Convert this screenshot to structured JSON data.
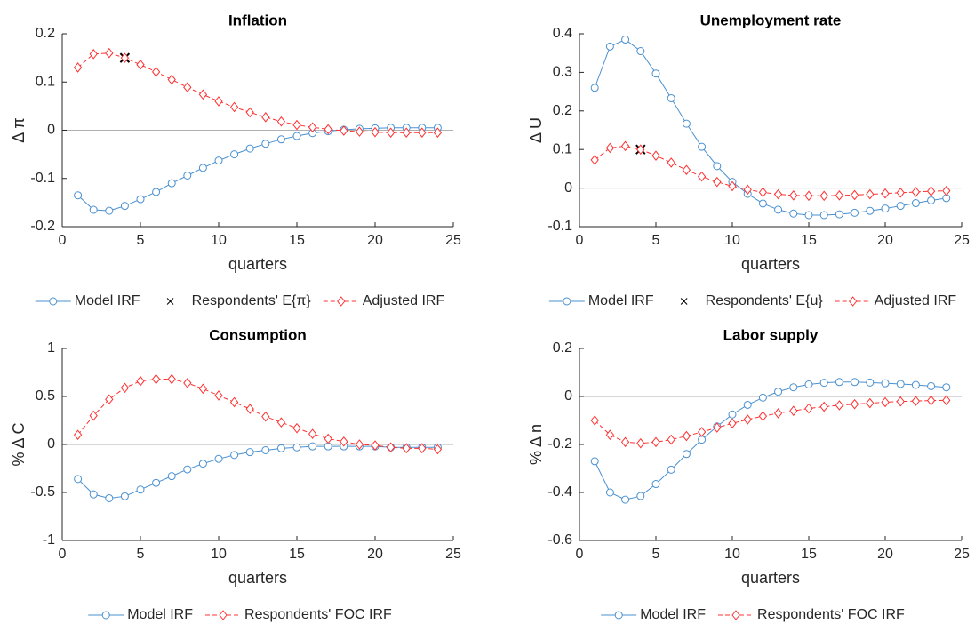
{
  "chart_data": [
    {
      "type": "line",
      "title": "Inflation",
      "xlabel": "quarters",
      "ylabel": "Δ π",
      "x": [
        1,
        2,
        3,
        4,
        5,
        6,
        7,
        8,
        9,
        10,
        11,
        12,
        13,
        14,
        15,
        16,
        17,
        18,
        19,
        20,
        21,
        22,
        23,
        24
      ],
      "xlim": [
        0,
        25
      ],
      "xticks": [
        0,
        5,
        10,
        15,
        20,
        25
      ],
      "ylim": [
        -0.2,
        0.2
      ],
      "yticks": [
        -0.2,
        -0.1,
        0,
        0.1,
        0.2
      ],
      "series": [
        {
          "name": "Model IRF",
          "color": "#4a90d0",
          "marker": "circle",
          "linestyle": "solid",
          "values": [
            -0.135,
            -0.165,
            -0.167,
            -0.157,
            -0.143,
            -0.128,
            -0.11,
            -0.094,
            -0.078,
            -0.063,
            -0.05,
            -0.038,
            -0.028,
            -0.019,
            -0.012,
            -0.006,
            -0.002,
            0.001,
            0.003,
            0.004,
            0.005,
            0.005,
            0.005,
            0.005
          ]
        },
        {
          "name": "Respondents' E{π}",
          "color": "#000000",
          "marker": "cross",
          "linestyle": "none",
          "x": [
            4
          ],
          "values": [
            0.15
          ]
        },
        {
          "name": "Adjusted IRF",
          "color": "#ff3030",
          "marker": "diamond",
          "linestyle": "dashed",
          "values": [
            0.13,
            0.158,
            0.16,
            0.15,
            0.136,
            0.121,
            0.105,
            0.089,
            0.074,
            0.06,
            0.048,
            0.037,
            0.027,
            0.018,
            0.011,
            0.006,
            0.002,
            -0.001,
            -0.003,
            -0.004,
            -0.005,
            -0.005,
            -0.005,
            -0.005
          ]
        }
      ]
    },
    {
      "type": "line",
      "title": "Unemployment rate",
      "xlabel": "quarters",
      "ylabel": "Δ U",
      "x": [
        1,
        2,
        3,
        4,
        5,
        6,
        7,
        8,
        9,
        10,
        11,
        12,
        13,
        14,
        15,
        16,
        17,
        18,
        19,
        20,
        21,
        22,
        23,
        24
      ],
      "xlim": [
        0,
        25
      ],
      "xticks": [
        0,
        5,
        10,
        15,
        20,
        25
      ],
      "ylim": [
        -0.1,
        0.4
      ],
      "yticks": [
        -0.1,
        0,
        0.1,
        0.2,
        0.3,
        0.4
      ],
      "series": [
        {
          "name": "Model IRF",
          "color": "#4a90d0",
          "marker": "circle",
          "linestyle": "solid",
          "values": [
            0.26,
            0.367,
            0.385,
            0.355,
            0.297,
            0.233,
            0.167,
            0.107,
            0.057,
            0.016,
            -0.015,
            -0.04,
            -0.056,
            -0.066,
            -0.07,
            -0.07,
            -0.068,
            -0.064,
            -0.059,
            -0.053,
            -0.046,
            -0.039,
            -0.032,
            -0.026
          ]
        },
        {
          "name": "Respondents' E{u}",
          "color": "#000000",
          "marker": "cross",
          "linestyle": "none",
          "x": [
            4
          ],
          "values": [
            0.1
          ]
        },
        {
          "name": "Adjusted IRF",
          "color": "#ff3030",
          "marker": "diamond",
          "linestyle": "dashed",
          "values": [
            0.073,
            0.104,
            0.109,
            0.1,
            0.084,
            0.066,
            0.047,
            0.03,
            0.016,
            0.005,
            -0.004,
            -0.011,
            -0.016,
            -0.019,
            -0.02,
            -0.02,
            -0.019,
            -0.018,
            -0.016,
            -0.014,
            -0.012,
            -0.01,
            -0.008,
            -0.007
          ]
        }
      ]
    },
    {
      "type": "line",
      "title": "Consumption",
      "xlabel": "quarters",
      "ylabel": "% Δ C",
      "x": [
        1,
        2,
        3,
        4,
        5,
        6,
        7,
        8,
        9,
        10,
        11,
        12,
        13,
        14,
        15,
        16,
        17,
        18,
        19,
        20,
        21,
        22,
        23,
        24
      ],
      "xlim": [
        0,
        25
      ],
      "xticks": [
        0,
        5,
        10,
        15,
        20,
        25
      ],
      "ylim": [
        -1,
        1
      ],
      "yticks": [
        -1,
        -0.5,
        0,
        0.5,
        1
      ],
      "series": [
        {
          "name": "Model IRF",
          "color": "#4a90d0",
          "marker": "circle",
          "linestyle": "solid",
          "values": [
            -0.36,
            -0.52,
            -0.56,
            -0.54,
            -0.47,
            -0.4,
            -0.33,
            -0.26,
            -0.2,
            -0.15,
            -0.11,
            -0.08,
            -0.06,
            -0.04,
            -0.03,
            -0.02,
            -0.02,
            -0.02,
            -0.02,
            -0.02,
            -0.03,
            -0.03,
            -0.03,
            -0.03
          ]
        },
        {
          "name": "Respondents' FOC IRF",
          "color": "#ff3030",
          "marker": "diamond",
          "linestyle": "dashed",
          "values": [
            0.1,
            0.3,
            0.47,
            0.59,
            0.66,
            0.68,
            0.68,
            0.64,
            0.58,
            0.51,
            0.44,
            0.37,
            0.29,
            0.23,
            0.17,
            0.11,
            0.06,
            0.03,
            0.0,
            -0.01,
            -0.03,
            -0.04,
            -0.04,
            -0.05
          ]
        }
      ]
    },
    {
      "type": "line",
      "title": "Labor supply",
      "xlabel": "quarters",
      "ylabel": "% Δ n",
      "x": [
        1,
        2,
        3,
        4,
        5,
        6,
        7,
        8,
        9,
        10,
        11,
        12,
        13,
        14,
        15,
        16,
        17,
        18,
        19,
        20,
        21,
        22,
        23,
        24
      ],
      "xlim": [
        0,
        25
      ],
      "xticks": [
        0,
        5,
        10,
        15,
        20,
        25
      ],
      "ylim": [
        -0.6,
        0.2
      ],
      "yticks": [
        -0.6,
        -0.4,
        -0.2,
        0,
        0.2
      ],
      "series": [
        {
          "name": "Model IRF",
          "color": "#4a90d0",
          "marker": "circle",
          "linestyle": "solid",
          "values": [
            -0.27,
            -0.4,
            -0.43,
            -0.415,
            -0.365,
            -0.305,
            -0.24,
            -0.18,
            -0.125,
            -0.075,
            -0.035,
            -0.005,
            0.02,
            0.038,
            0.05,
            0.057,
            0.06,
            0.06,
            0.058,
            0.055,
            0.052,
            0.048,
            0.043,
            0.038
          ]
        },
        {
          "name": "Respondents' FOC IRF",
          "color": "#ff3030",
          "marker": "diamond",
          "linestyle": "dashed",
          "values": [
            -0.1,
            -0.16,
            -0.19,
            -0.195,
            -0.19,
            -0.18,
            -0.165,
            -0.148,
            -0.13,
            -0.112,
            -0.096,
            -0.082,
            -0.07,
            -0.06,
            -0.05,
            -0.043,
            -0.037,
            -0.032,
            -0.028,
            -0.024,
            -0.021,
            -0.019,
            -0.017,
            -0.016
          ]
        }
      ]
    }
  ]
}
